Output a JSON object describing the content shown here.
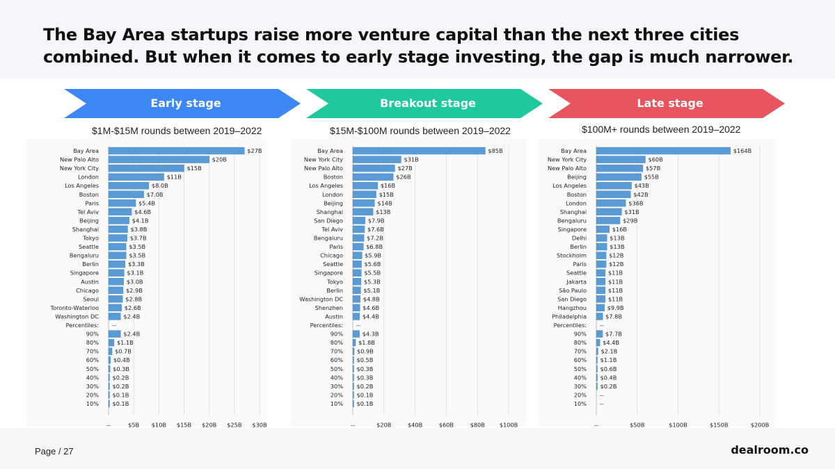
{
  "title": "The Bay Area startups raise more venture capital than the next three cities combined. But when it comes to early stage investing, the gap is much narrower.",
  "footer": {
    "page_label": "Page / 27",
    "brand": "dealroom.co"
  },
  "colors": {
    "early": "#3d87f5",
    "breakout": "#20c89d",
    "late": "#e9555f",
    "bar": "#5b9bd5"
  },
  "panels": [
    {
      "label": "Early stage",
      "subtitle": "$1M-$15M rounds between 2019–2022"
    },
    {
      "label": "Breakout stage",
      "subtitle": "$15M-$100M rounds between 2019–2022"
    },
    {
      "label": "Late stage",
      "subtitle": "$100M+ rounds between 2019–2022"
    }
  ],
  "chart_data": [
    {
      "type": "bar",
      "orientation": "horizontal",
      "title": "Early stage",
      "categories": [
        "Bay Area",
        "New Palo Alto",
        "New York City",
        "London",
        "Los Angeles",
        "Boston",
        "Paris",
        "Tel Aviv",
        "Beijing",
        "Shanghai",
        "Tokyo",
        "Seattle",
        "Bengaluru",
        "Berlin",
        "Singapore",
        "Austin",
        "Chicago",
        "Seoul",
        "Toronto-Waterloo",
        "Washington DC",
        "Percentiles:",
        "90%",
        "80%",
        "70%",
        "60%",
        "50%",
        "40%",
        "30%",
        "20%",
        "10%"
      ],
      "values": [
        27,
        20,
        15,
        11,
        8.0,
        7.0,
        5.4,
        4.6,
        4.1,
        3.8,
        3.7,
        3.5,
        3.5,
        3.3,
        3.1,
        3.0,
        2.9,
        2.8,
        2.6,
        2.4,
        null,
        2.4,
        1.1,
        0.7,
        0.4,
        0.3,
        0.2,
        0.2,
        0.1,
        0.1
      ],
      "value_labels": [
        "$27B",
        "$20B",
        "$15B",
        "$11B",
        "$8.0B",
        "$7.0B",
        "$5.4B",
        "$4.6B",
        "$4.1B",
        "$3.8B",
        "$3.7B",
        "$3.5B",
        "$3.5B",
        "$3.3B",
        "$3.1B",
        "$3.0B",
        "$2.9B",
        "$2.8B",
        "$2.6B",
        "$2.4B",
        "--",
        "$2.4B",
        "$1.1B",
        "$0.7B",
        "$0.4B",
        "$0.3B",
        "$0.2B",
        "$0.2B",
        "$0.1B",
        "$0.1B"
      ],
      "xlim": [
        0,
        30
      ],
      "xticks": [
        0,
        5,
        10,
        15,
        20,
        25,
        30
      ],
      "xtick_labels": [
        "--",
        "$5B",
        "$10B",
        "$15B",
        "$20B",
        "$25B",
        "$30B"
      ]
    },
    {
      "type": "bar",
      "orientation": "horizontal",
      "title": "Breakout stage",
      "categories": [
        "Bay Area",
        "New York City",
        "New Palo Alto",
        "Boston",
        "Los Angeles",
        "London",
        "Beijing",
        "Shanghai",
        "San Diego",
        "Tel Aviv",
        "Bengaluru",
        "Paris",
        "Chicago",
        "Seattle",
        "Singapore",
        "Tokyo",
        "Berlin",
        "Washington DC",
        "Shenzhen",
        "Austin",
        "Percentiles:",
        "90%",
        "80%",
        "70%",
        "60%",
        "50%",
        "40%",
        "30%",
        "20%",
        "10%"
      ],
      "values": [
        85,
        31,
        27,
        26,
        16,
        15,
        14,
        13,
        7.9,
        7.6,
        7.2,
        6.8,
        5.9,
        5.6,
        5.5,
        5.3,
        5.1,
        4.8,
        4.6,
        4.4,
        null,
        4.3,
        1.8,
        0.9,
        0.5,
        0.3,
        0.3,
        0.2,
        0.1,
        0.1
      ],
      "value_labels": [
        "$85B",
        "$31B",
        "$27B",
        "$26B",
        "$16B",
        "$15B",
        "$14B",
        "$13B",
        "$7.9B",
        "$7.6B",
        "$7.2B",
        "$6.8B",
        "$5.9B",
        "$5.6B",
        "$5.5B",
        "$5.3B",
        "$5.1B",
        "$4.8B",
        "$4.6B",
        "$4.4B",
        "--",
        "$4.3B",
        "$1.8B",
        "$0.9B",
        "$0.5B",
        "$0.3B",
        "$0.3B",
        "$0.2B",
        "$0.1B",
        "$0.1B"
      ],
      "xlim": [
        0,
        100
      ],
      "xticks": [
        0,
        20,
        40,
        60,
        80,
        100
      ],
      "xtick_labels": [
        "--",
        "$20B",
        "$40B",
        "$60B",
        "$80B",
        "$100B"
      ]
    },
    {
      "type": "bar",
      "orientation": "horizontal",
      "title": "Late stage",
      "categories": [
        "Bay Area",
        "New York City",
        "New Palo Alto",
        "Beijing",
        "Los Angeles",
        "Boston",
        "London",
        "Shanghai",
        "Bengaluru",
        "Singapore",
        "Delhi",
        "Berlin",
        "Stockholm",
        "Paris",
        "Seattle",
        "Jakarta",
        "São Paulo",
        "San Diego",
        "Hangzhou",
        "Philadelphia",
        "Percentiles:",
        "90%",
        "80%",
        "70%",
        "60%",
        "50%",
        "40%",
        "30%",
        "20%",
        "10%"
      ],
      "values": [
        164,
        60,
        57,
        55,
        43,
        42,
        36,
        31,
        29,
        16,
        13,
        13,
        12,
        12,
        11,
        11,
        11,
        11,
        9.9,
        7.8,
        null,
        7.7,
        4.4,
        2.1,
        1.1,
        0.6,
        0.4,
        0.2,
        null,
        null
      ],
      "value_labels": [
        "$164B",
        "$60B",
        "$57B",
        "$55B",
        "$43B",
        "$42B",
        "$36B",
        "$31B",
        "$29B",
        "$16B",
        "$13B",
        "$13B",
        "$12B",
        "$12B",
        "$11B",
        "$11B",
        "$11B",
        "$11B",
        "$9.9B",
        "$7.8B",
        "--",
        "$7.7B",
        "$4.4B",
        "$2.1B",
        "$1.1B",
        "$0.6B",
        "$0.4B",
        "$0.2B",
        "--",
        "--"
      ],
      "xlim": [
        0,
        200
      ],
      "xticks": [
        0,
        50,
        100,
        150,
        200
      ],
      "xtick_labels": [
        "--",
        "$50B",
        "$100B",
        "$150B",
        "$200B"
      ]
    }
  ]
}
